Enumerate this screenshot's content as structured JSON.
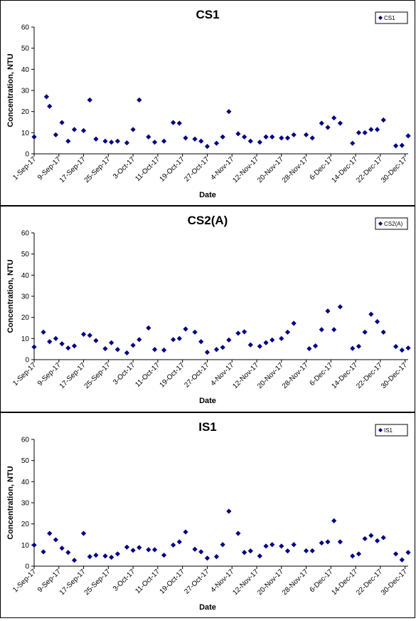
{
  "chart_data": [
    {
      "type": "scatter",
      "title": "CS1",
      "xlabel": "Date",
      "ylabel": "Concentration, NTU",
      "ylim": [
        0,
        60
      ],
      "yticks": [
        0,
        10,
        20,
        30,
        40,
        50,
        60
      ],
      "xticks": [
        "1-Sep-17",
        "9-Sep-17",
        "17-Sep-17",
        "25-Sep-17",
        "3-Oct-17",
        "11-Oct-17",
        "19-Oct-17",
        "27-Oct-17",
        "4-Nov-17",
        "12-Nov-17",
        "20-Nov-17",
        "28-Nov-17",
        "6-Dec-17",
        "14-Dec-17",
        "22-Dec-17",
        "30-Dec-17"
      ],
      "legend": "top-right",
      "grid": false,
      "marker_color": "#000080",
      "series": [
        {
          "name": "CS1",
          "points": [
            [
              "1-Sep-17",
              8
            ],
            [
              "5-Sep-17",
              27
            ],
            [
              "6-Sep-17",
              22.5
            ],
            [
              "8-Sep-17",
              9
            ],
            [
              "10-Sep-17",
              14.8
            ],
            [
              "12-Sep-17",
              6
            ],
            [
              "14-Sep-17",
              11.5
            ],
            [
              "17-Sep-17",
              11
            ],
            [
              "19-Sep-17",
              25.5
            ],
            [
              "21-Sep-17",
              7
            ],
            [
              "24-Sep-17",
              6
            ],
            [
              "26-Sep-17",
              5.5
            ],
            [
              "28-Sep-17",
              6
            ],
            [
              "1-Oct-17",
              5.2
            ],
            [
              "3-Oct-17",
              11.5
            ],
            [
              "5-Oct-17",
              25.5
            ],
            [
              "8-Oct-17",
              8
            ],
            [
              "10-Oct-17",
              5.5
            ],
            [
              "13-Oct-17",
              6
            ],
            [
              "16-Oct-17",
              14.8
            ],
            [
              "18-Oct-17",
              14.5
            ],
            [
              "20-Oct-17",
              7.5
            ],
            [
              "23-Oct-17",
              7
            ],
            [
              "25-Oct-17",
              6
            ],
            [
              "27-Oct-17",
              3.5
            ],
            [
              "30-Oct-17",
              5
            ],
            [
              "1-Nov-17",
              8
            ],
            [
              "3-Nov-17",
              20
            ],
            [
              "6-Nov-17",
              9.5
            ],
            [
              "8-Nov-17",
              8
            ],
            [
              "10-Nov-17",
              6
            ],
            [
              "13-Nov-17",
              5.5
            ],
            [
              "15-Nov-17",
              8
            ],
            [
              "17-Nov-17",
              8
            ],
            [
              "20-Nov-17",
              7.5
            ],
            [
              "22-Nov-17",
              7.5
            ],
            [
              "24-Nov-17",
              9
            ],
            [
              "28-Nov-17",
              9
            ],
            [
              "30-Nov-17",
              7.5
            ],
            [
              "3-Dec-17",
              14.5
            ],
            [
              "5-Dec-17",
              12.5
            ],
            [
              "7-Dec-17",
              17
            ],
            [
              "9-Dec-17",
              14.5
            ],
            [
              "13-Dec-17",
              5
            ],
            [
              "15-Dec-17",
              10
            ],
            [
              "17-Dec-17",
              10
            ],
            [
              "19-Dec-17",
              11.5
            ],
            [
              "21-Dec-17",
              11.5
            ],
            [
              "23-Dec-17",
              16
            ],
            [
              "27-Dec-17",
              3.8
            ],
            [
              "29-Dec-17",
              4
            ],
            [
              "31-Dec-17",
              8.5
            ]
          ]
        }
      ]
    },
    {
      "type": "scatter",
      "title": "CS2(A)",
      "xlabel": "Date",
      "ylabel": "Concentration, NTU",
      "ylim": [
        0,
        60
      ],
      "yticks": [
        0,
        10,
        20,
        30,
        40,
        50,
        60
      ],
      "xticks": [
        "1-Sep-17",
        "9-Sep-17",
        "17-Sep-17",
        "25-Sep-17",
        "3-Oct-17",
        "11-Oct-17",
        "19-Oct-17",
        "27-Oct-17",
        "4-Nov-17",
        "12-Nov-17",
        "20-Nov-17",
        "28-Nov-17",
        "6-Dec-17",
        "14-Dec-17",
        "22-Dec-17",
        "30-Dec-17"
      ],
      "legend": "top-right",
      "grid": false,
      "marker_color": "#000080",
      "series": [
        {
          "name": "CS2(A)",
          "points": [
            [
              "1-Sep-17",
              6
            ],
            [
              "4-Sep-17",
              13
            ],
            [
              "6-Sep-17",
              8.5
            ],
            [
              "8-Sep-17",
              10
            ],
            [
              "10-Sep-17",
              7.5
            ],
            [
              "12-Sep-17",
              5.5
            ],
            [
              "14-Sep-17",
              6.5
            ],
            [
              "17-Sep-17",
              12
            ],
            [
              "19-Sep-17",
              11.5
            ],
            [
              "21-Sep-17",
              9
            ],
            [
              "24-Sep-17",
              5.2
            ],
            [
              "26-Sep-17",
              8
            ],
            [
              "28-Sep-17",
              4.8
            ],
            [
              "1-Oct-17",
              3.2
            ],
            [
              "3-Oct-17",
              6.8
            ],
            [
              "5-Oct-17",
              9.5
            ],
            [
              "8-Oct-17",
              15
            ],
            [
              "10-Oct-17",
              4.8
            ],
            [
              "13-Oct-17",
              4.5
            ],
            [
              "16-Oct-17",
              9.5
            ],
            [
              "18-Oct-17",
              10
            ],
            [
              "20-Oct-17",
              14.5
            ],
            [
              "23-Oct-17",
              13
            ],
            [
              "25-Oct-17",
              8.5
            ],
            [
              "27-Oct-17",
              3.5
            ],
            [
              "30-Oct-17",
              4.8
            ],
            [
              "1-Nov-17",
              5.8
            ],
            [
              "3-Nov-17",
              9.3
            ],
            [
              "6-Nov-17",
              12.5
            ],
            [
              "8-Nov-17",
              13.2
            ],
            [
              "10-Nov-17",
              7
            ],
            [
              "13-Nov-17",
              6.3
            ],
            [
              "15-Nov-17",
              8
            ],
            [
              "17-Nov-17",
              9.3
            ],
            [
              "20-Nov-17",
              10
            ],
            [
              "22-Nov-17",
              13
            ],
            [
              "24-Nov-17",
              17.2
            ],
            [
              "29-Nov-17",
              5.2
            ],
            [
              "1-Dec-17",
              6.5
            ],
            [
              "3-Dec-17",
              14.2
            ],
            [
              "5-Dec-17",
              23
            ],
            [
              "7-Dec-17",
              14.2
            ],
            [
              "9-Dec-17",
              25
            ],
            [
              "13-Dec-17",
              5.3
            ],
            [
              "15-Dec-17",
              6.3
            ],
            [
              "17-Dec-17",
              13
            ],
            [
              "19-Dec-17",
              21.5
            ],
            [
              "21-Dec-17",
              18
            ],
            [
              "23-Dec-17",
              13
            ],
            [
              "27-Dec-17",
              6.2
            ],
            [
              "29-Dec-17",
              4.5
            ],
            [
              "31-Dec-17",
              5.5
            ]
          ]
        }
      ]
    },
    {
      "type": "scatter",
      "title": "IS1",
      "xlabel": "Date",
      "ylabel": "Concentration, NTU",
      "ylim": [
        0,
        60
      ],
      "yticks": [
        0,
        10,
        20,
        30,
        40,
        50,
        60
      ],
      "xticks": [
        "1-Sep-17",
        "9-Sep-17",
        "17-Sep-17",
        "25-Sep-17",
        "3-Oct-17",
        "11-Oct-17",
        "19-Oct-17",
        "27-Oct-17",
        "4-Nov-17",
        "12-Nov-17",
        "20-Nov-17",
        "28-Nov-17",
        "6-Dec-17",
        "14-Dec-17",
        "22-Dec-17",
        "30-Dec-17"
      ],
      "legend": "top-right",
      "grid": false,
      "marker_color": "#000080",
      "series": [
        {
          "name": "IS1",
          "points": [
            [
              "1-Sep-17",
              10
            ],
            [
              "4-Sep-17",
              6.8
            ],
            [
              "6-Sep-17",
              15.5
            ],
            [
              "8-Sep-17",
              12.5
            ],
            [
              "10-Sep-17",
              8.5
            ],
            [
              "12-Sep-17",
              6.5
            ],
            [
              "14-Sep-17",
              2.8
            ],
            [
              "17-Sep-17",
              15.5
            ],
            [
              "19-Sep-17",
              4.5
            ],
            [
              "21-Sep-17",
              5.2
            ],
            [
              "24-Sep-17",
              4.8
            ],
            [
              "26-Sep-17",
              4.2
            ],
            [
              "28-Sep-17",
              5.8
            ],
            [
              "1-Oct-17",
              9
            ],
            [
              "3-Oct-17",
              7.5
            ],
            [
              "5-Oct-17",
              8.8
            ],
            [
              "8-Oct-17",
              7.8
            ],
            [
              "10-Oct-17",
              7.8
            ],
            [
              "13-Oct-17",
              5.2
            ],
            [
              "16-Oct-17",
              10
            ],
            [
              "18-Oct-17",
              11.5
            ],
            [
              "20-Oct-17",
              16.2
            ],
            [
              "23-Oct-17",
              8
            ],
            [
              "25-Oct-17",
              6.8
            ],
            [
              "27-Oct-17",
              3.8
            ],
            [
              "30-Oct-17",
              4.5
            ],
            [
              "1-Nov-17",
              10.2
            ],
            [
              "3-Nov-17",
              26
            ],
            [
              "6-Nov-17",
              15.5
            ],
            [
              "8-Nov-17",
              6.5
            ],
            [
              "10-Nov-17",
              7.2
            ],
            [
              "13-Nov-17",
              4.8
            ],
            [
              "15-Nov-17",
              9.5
            ],
            [
              "17-Nov-17",
              10.2
            ],
            [
              "20-Nov-17",
              9.5
            ],
            [
              "22-Nov-17",
              7.2
            ],
            [
              "24-Nov-17",
              10.2
            ],
            [
              "28-Nov-17",
              7.3
            ],
            [
              "30-Nov-17",
              7.3
            ],
            [
              "3-Dec-17",
              11
            ],
            [
              "5-Dec-17",
              11.5
            ],
            [
              "7-Dec-17",
              21.5
            ],
            [
              "9-Dec-17",
              11.5
            ],
            [
              "13-Dec-17",
              4.8
            ],
            [
              "15-Dec-17",
              5.8
            ],
            [
              "17-Dec-17",
              13
            ],
            [
              "19-Dec-17",
              14.5
            ],
            [
              "21-Dec-17",
              12
            ],
            [
              "23-Dec-17",
              13.5
            ],
            [
              "27-Dec-17",
              5.8
            ],
            [
              "29-Dec-17",
              3
            ],
            [
              "31-Dec-17",
              6.5
            ]
          ]
        }
      ]
    }
  ]
}
